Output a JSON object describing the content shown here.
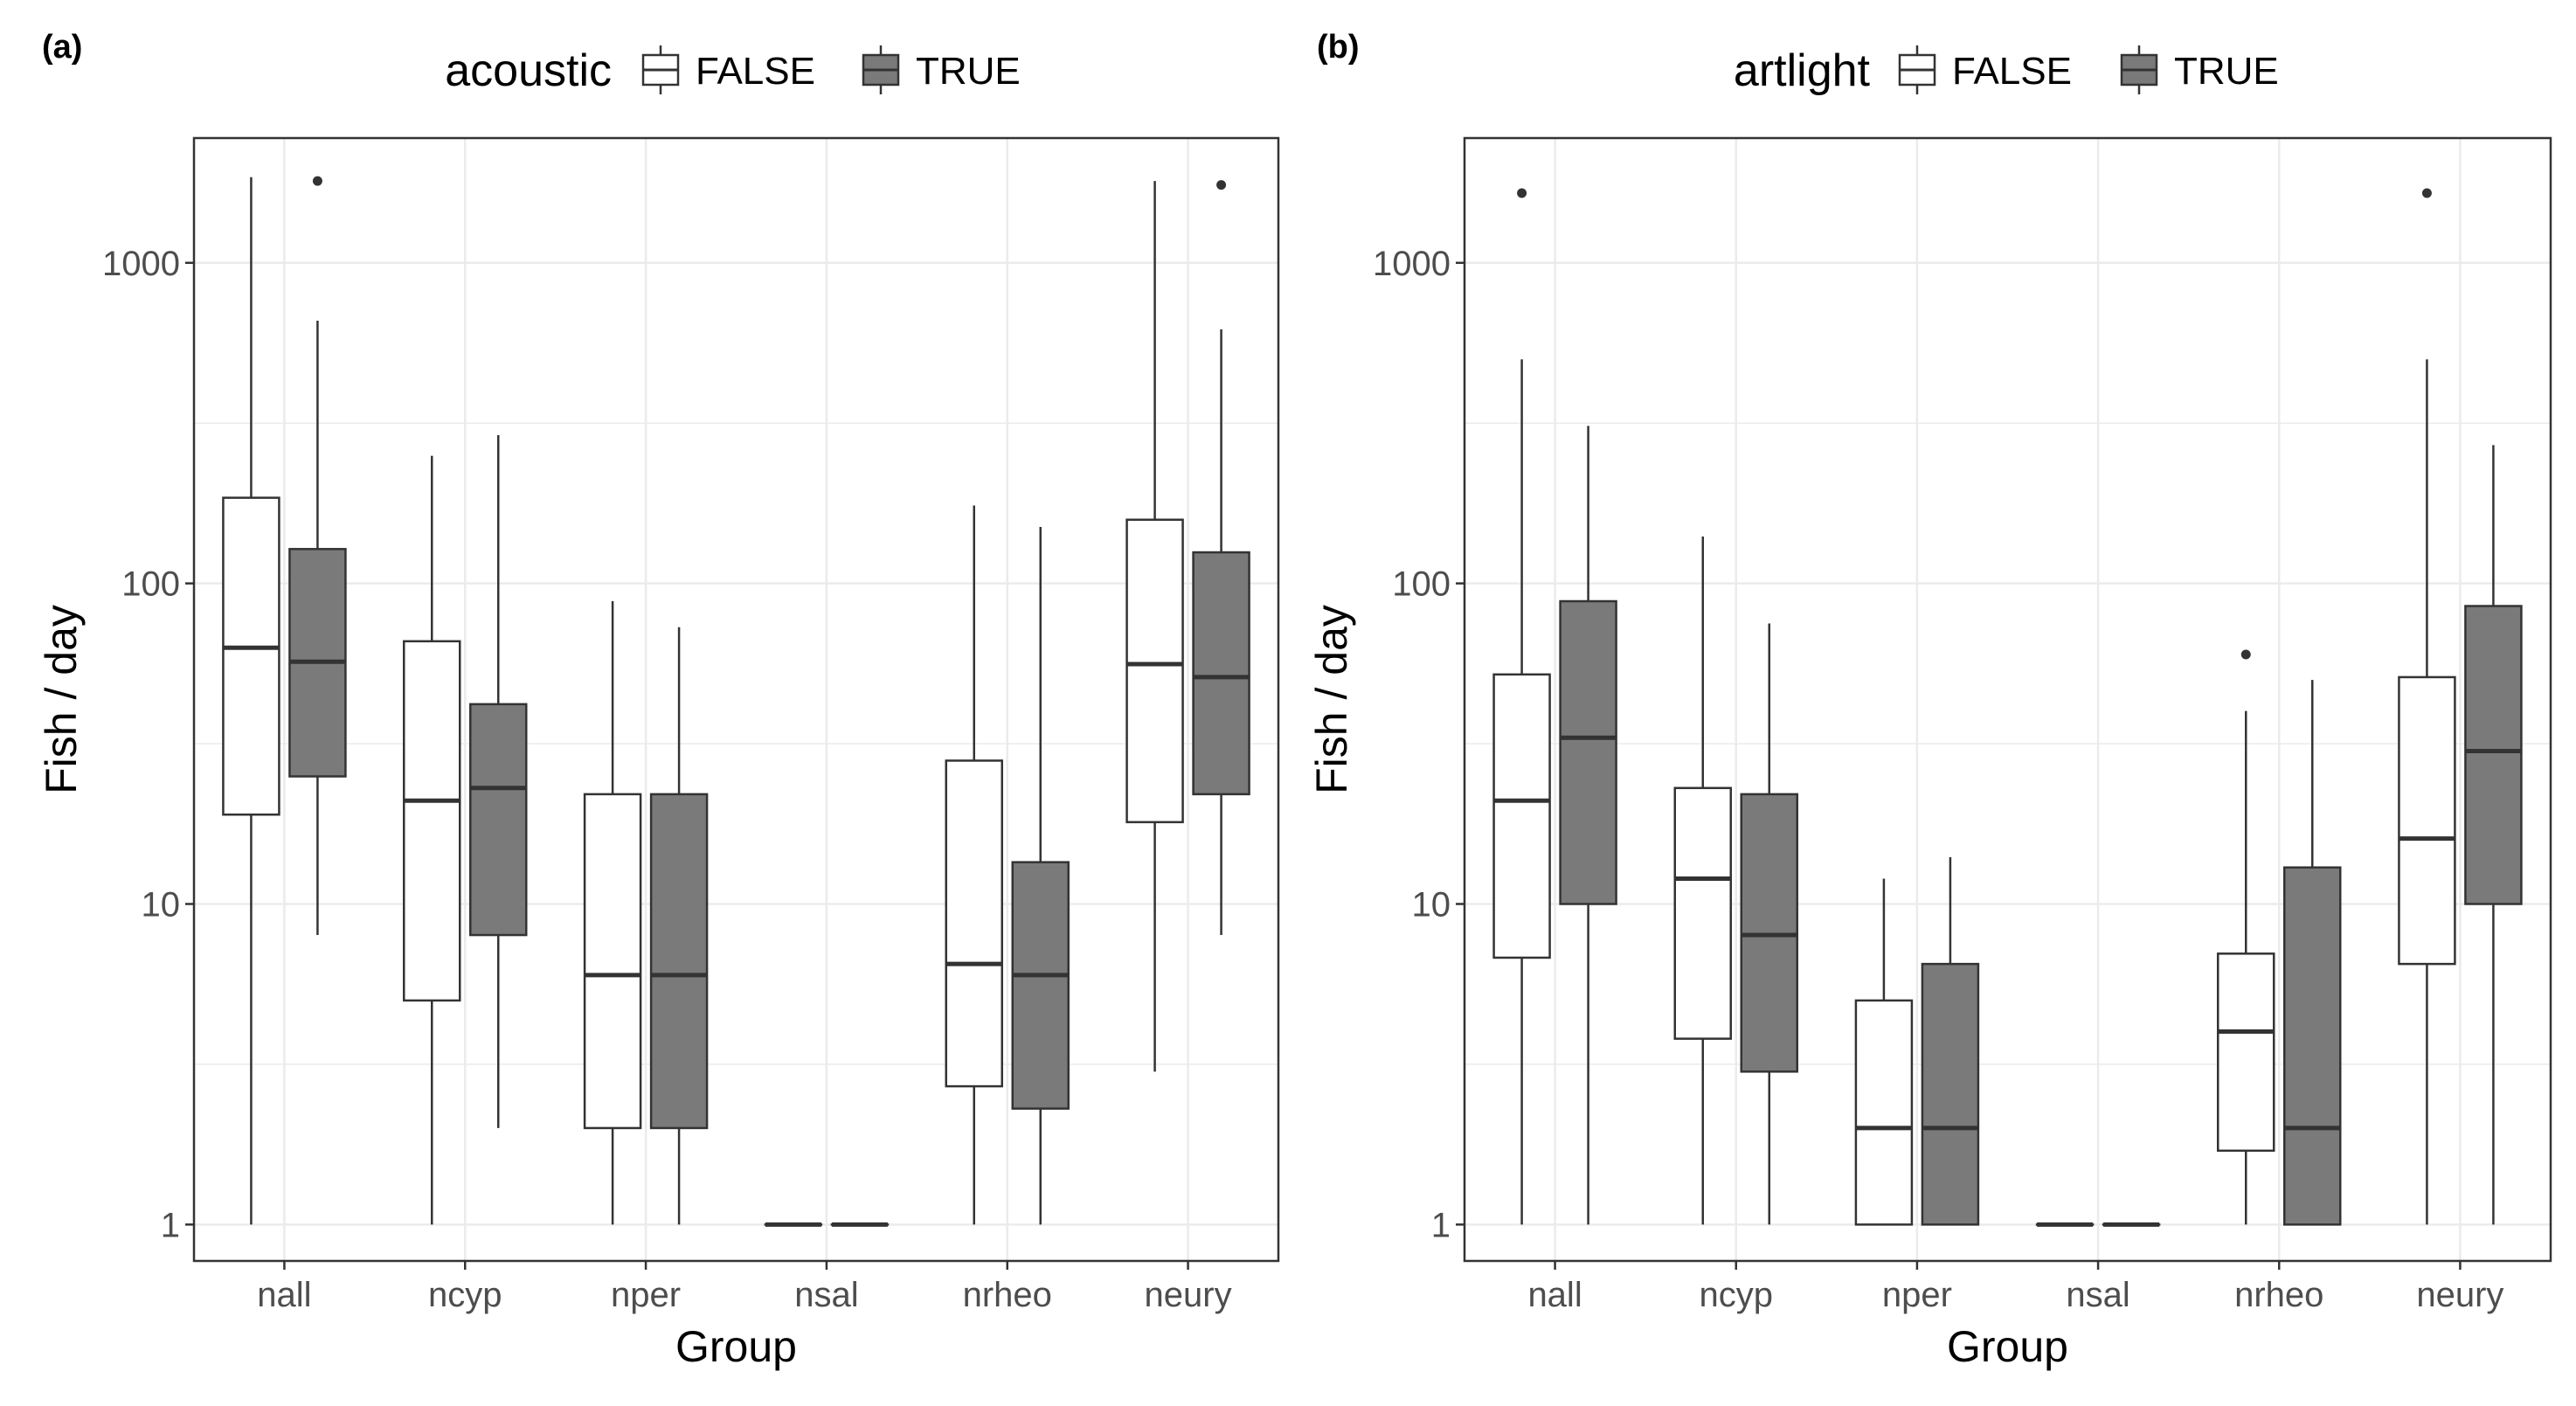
{
  "chart_data": [
    {
      "type": "boxplot",
      "panel_label": "(a)",
      "legend_title": "acoustic",
      "legend": [
        "FALSE",
        "TRUE"
      ],
      "xlabel": "Group",
      "ylabel": "Fish / day",
      "y_scale": "log10",
      "ylim": [
        0.77,
        2450
      ],
      "yticks": [
        1,
        10,
        100,
        1000
      ],
      "ytick_labels": [
        "1",
        "10",
        "100",
        "1000"
      ],
      "categories": [
        "nall",
        "ncyp",
        "nper",
        "nsal",
        "nrheo",
        "neury"
      ],
      "series": [
        {
          "name": "FALSE",
          "fill": "#ffffff",
          "boxes": [
            {
              "min": 1,
              "q1": 19,
              "median": 63,
              "q3": 185,
              "max": 1850,
              "outliers": []
            },
            {
              "min": 1,
              "q1": 5,
              "median": 21,
              "q3": 66,
              "max": 250,
              "outliers": []
            },
            {
              "min": 1,
              "q1": 2,
              "median": 6,
              "q3": 22,
              "max": 88,
              "outliers": []
            },
            {
              "min": 1,
              "q1": 1,
              "median": 1,
              "q3": 1,
              "max": 1,
              "outliers": []
            },
            {
              "min": 1,
              "q1": 2.7,
              "median": 6.5,
              "q3": 28,
              "max": 175,
              "outliers": []
            },
            {
              "min": 3,
              "q1": 18,
              "median": 56,
              "q3": 158,
              "max": 1800,
              "outliers": []
            }
          ]
        },
        {
          "name": "TRUE",
          "fill": "#7a7a7a",
          "boxes": [
            {
              "min": 8,
              "q1": 25,
              "median": 57,
              "q3": 128,
              "max": 660,
              "outliers": [
                1800
              ]
            },
            {
              "min": 2,
              "q1": 8,
              "median": 23,
              "q3": 42,
              "max": 290,
              "outliers": []
            },
            {
              "min": 1,
              "q1": 2,
              "median": 6,
              "q3": 22,
              "max": 73,
              "outliers": []
            },
            {
              "min": 1,
              "q1": 1,
              "median": 1,
              "q3": 1,
              "max": 1,
              "outliers": []
            },
            {
              "min": 1,
              "q1": 2.3,
              "median": 6,
              "q3": 13.5,
              "max": 150,
              "outliers": []
            },
            {
              "min": 8,
              "q1": 22,
              "median": 51,
              "q3": 125,
              "max": 620,
              "outliers": [
                1750
              ]
            }
          ]
        }
      ]
    },
    {
      "type": "boxplot",
      "panel_label": "(b)",
      "legend_title": "artlight",
      "legend": [
        "FALSE",
        "TRUE"
      ],
      "xlabel": "Group",
      "ylabel": "Fish / day",
      "y_scale": "log10",
      "ylim": [
        0.77,
        2450
      ],
      "yticks": [
        1,
        10,
        100,
        1000
      ],
      "ytick_labels": [
        "1",
        "10",
        "100",
        "1000"
      ],
      "categories": [
        "nall",
        "ncyp",
        "nper",
        "nsal",
        "nrheo",
        "neury"
      ],
      "series": [
        {
          "name": "FALSE",
          "fill": "#ffffff",
          "boxes": [
            {
              "min": 1,
              "q1": 6.8,
              "median": 21,
              "q3": 52,
              "max": 500,
              "outliers": [
                1650
              ]
            },
            {
              "min": 1,
              "q1": 3.8,
              "median": 12,
              "q3": 23,
              "max": 140,
              "outliers": []
            },
            {
              "min": 1,
              "q1": 1,
              "median": 2,
              "q3": 5,
              "max": 12,
              "outliers": []
            },
            {
              "min": 1,
              "q1": 1,
              "median": 1,
              "q3": 1,
              "max": 1,
              "outliers": []
            },
            {
              "min": 1,
              "q1": 1.7,
              "median": 4,
              "q3": 7,
              "max": 40,
              "outliers": [
                60
              ]
            },
            {
              "min": 1,
              "q1": 6.5,
              "median": 16,
              "q3": 51,
              "max": 500,
              "outliers": [
                1650
              ]
            }
          ]
        },
        {
          "name": "TRUE",
          "fill": "#7a7a7a",
          "boxes": [
            {
              "min": 1,
              "q1": 10,
              "median": 33,
              "q3": 88,
              "max": 310,
              "outliers": []
            },
            {
              "min": 1,
              "q1": 3,
              "median": 8,
              "q3": 22,
              "max": 75,
              "outliers": []
            },
            {
              "min": 1,
              "q1": 1,
              "median": 2,
              "q3": 6.5,
              "max": 14,
              "outliers": []
            },
            {
              "min": 1,
              "q1": 1,
              "median": 1,
              "q3": 1,
              "max": 1,
              "outliers": []
            },
            {
              "min": 1,
              "q1": 1,
              "median": 2,
              "q3": 13,
              "max": 50,
              "outliers": []
            },
            {
              "min": 1,
              "q1": 10,
              "median": 30,
              "q3": 85,
              "max": 270,
              "outliers": []
            }
          ]
        }
      ]
    }
  ],
  "colors": {
    "grid": "#ebebeb",
    "axis_text": "#4d4d4d",
    "box_stroke": "#333333",
    "true_fill": "#7a7a7a",
    "false_fill": "#ffffff"
  }
}
